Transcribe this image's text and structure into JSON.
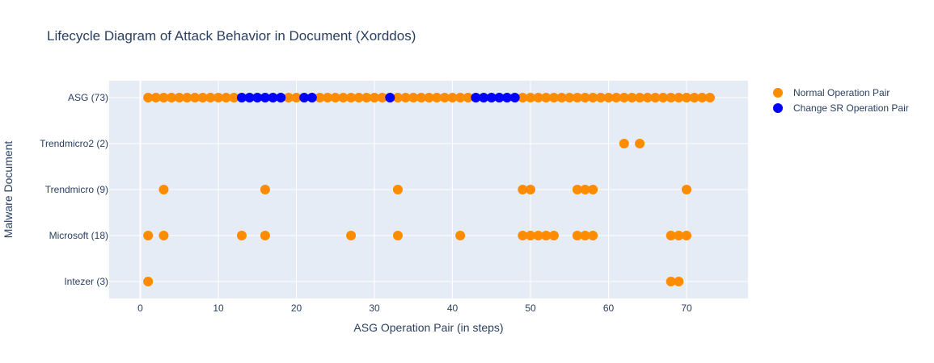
{
  "chart_data": {
    "type": "scatter",
    "title": "Lifecycle Diagram of Attack Behavior in Document (Xorddos)",
    "xlabel": "ASG Operation Pair (in steps)",
    "ylabel": "Malware Document",
    "xlim": [
      -4,
      78
    ],
    "xticks": [
      0,
      10,
      20,
      30,
      40,
      50,
      60,
      70
    ],
    "categories": [
      "Intezer (3)",
      "Microsoft (18)",
      "Trendmicro (9)",
      "Trendmicro2 (2)",
      "ASG (73)"
    ],
    "grid": true,
    "legend_position": "top-right",
    "series": [
      {
        "name": "Normal Operation Pair",
        "color": "#ff8c00",
        "points": [
          {
            "doc": "ASG (73)",
            "x": [
              1,
              2,
              3,
              4,
              5,
              6,
              7,
              8,
              9,
              10,
              11,
              12,
              19,
              20,
              23,
              24,
              25,
              26,
              27,
              28,
              29,
              30,
              31,
              33,
              34,
              35,
              36,
              37,
              38,
              39,
              40,
              41,
              42,
              49,
              50,
              51,
              52,
              53,
              54,
              55,
              56,
              57,
              58,
              59,
              60,
              61,
              62,
              63,
              64,
              65,
              66,
              67,
              68,
              69,
              70,
              71,
              72,
              73
            ]
          },
          {
            "doc": "Trendmicro2 (2)",
            "x": [
              62,
              64
            ]
          },
          {
            "doc": "Trendmicro (9)",
            "x": [
              3,
              16,
              33,
              49,
              50,
              56,
              57,
              58,
              70
            ]
          },
          {
            "doc": "Microsoft (18)",
            "x": [
              1,
              3,
              13,
              16,
              27,
              33,
              41,
              49,
              50,
              51,
              52,
              53,
              56,
              57,
              58,
              68,
              69,
              70
            ]
          },
          {
            "doc": "Intezer (3)",
            "x": [
              1,
              68,
              69
            ]
          }
        ]
      },
      {
        "name": "Change SR Operation Pair",
        "color": "#0000ff",
        "points": [
          {
            "doc": "ASG (73)",
            "x": [
              13,
              14,
              15,
              16,
              17,
              18,
              21,
              22,
              32,
              43,
              44,
              45,
              46,
              47,
              48
            ]
          }
        ]
      }
    ]
  }
}
